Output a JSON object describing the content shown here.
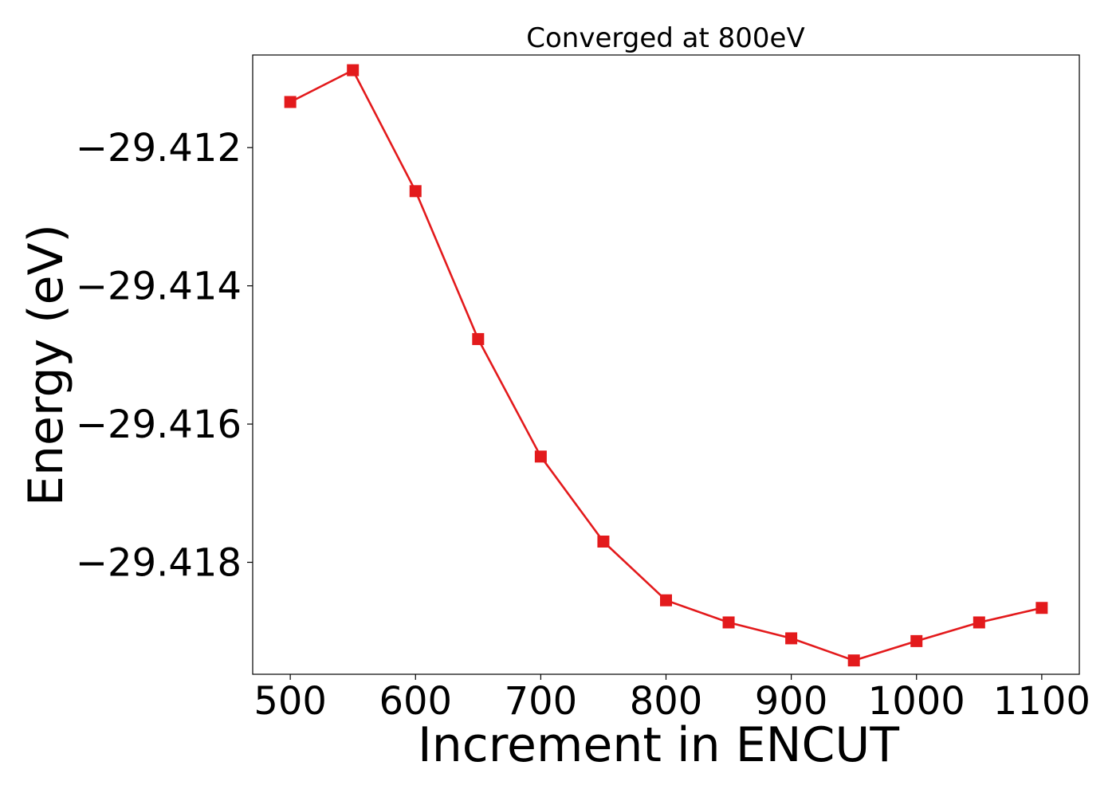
{
  "chart_data": {
    "type": "line",
    "title": "Converged at 800eV",
    "xlabel": "Increment in ENCUT",
    "ylabel": "Energy (eV)",
    "xlim": [
      470,
      1130
    ],
    "ylim": [
      -29.41962,
      -29.41066
    ],
    "x_ticks": [
      500,
      600,
      700,
      800,
      900,
      1000,
      1100
    ],
    "y_ticks": [
      -29.412,
      -29.414,
      -29.416,
      -29.418
    ],
    "y_tick_labels": [
      "−29.412",
      "−29.414",
      "−29.416",
      "−29.418"
    ],
    "grid": false,
    "series": [
      {
        "color": "#e31a1c",
        "marker": "square",
        "x": [
          500,
          550,
          600,
          650,
          700,
          750,
          800,
          850,
          900,
          950,
          1000,
          1050,
          1100
        ],
        "y": [
          -29.41134,
          -29.41088,
          -29.41263,
          -29.41477,
          -29.41647,
          -29.4177,
          -29.41855,
          -29.41887,
          -29.4191,
          -29.41942,
          -29.41914,
          -29.41887,
          -29.41866
        ]
      }
    ]
  }
}
